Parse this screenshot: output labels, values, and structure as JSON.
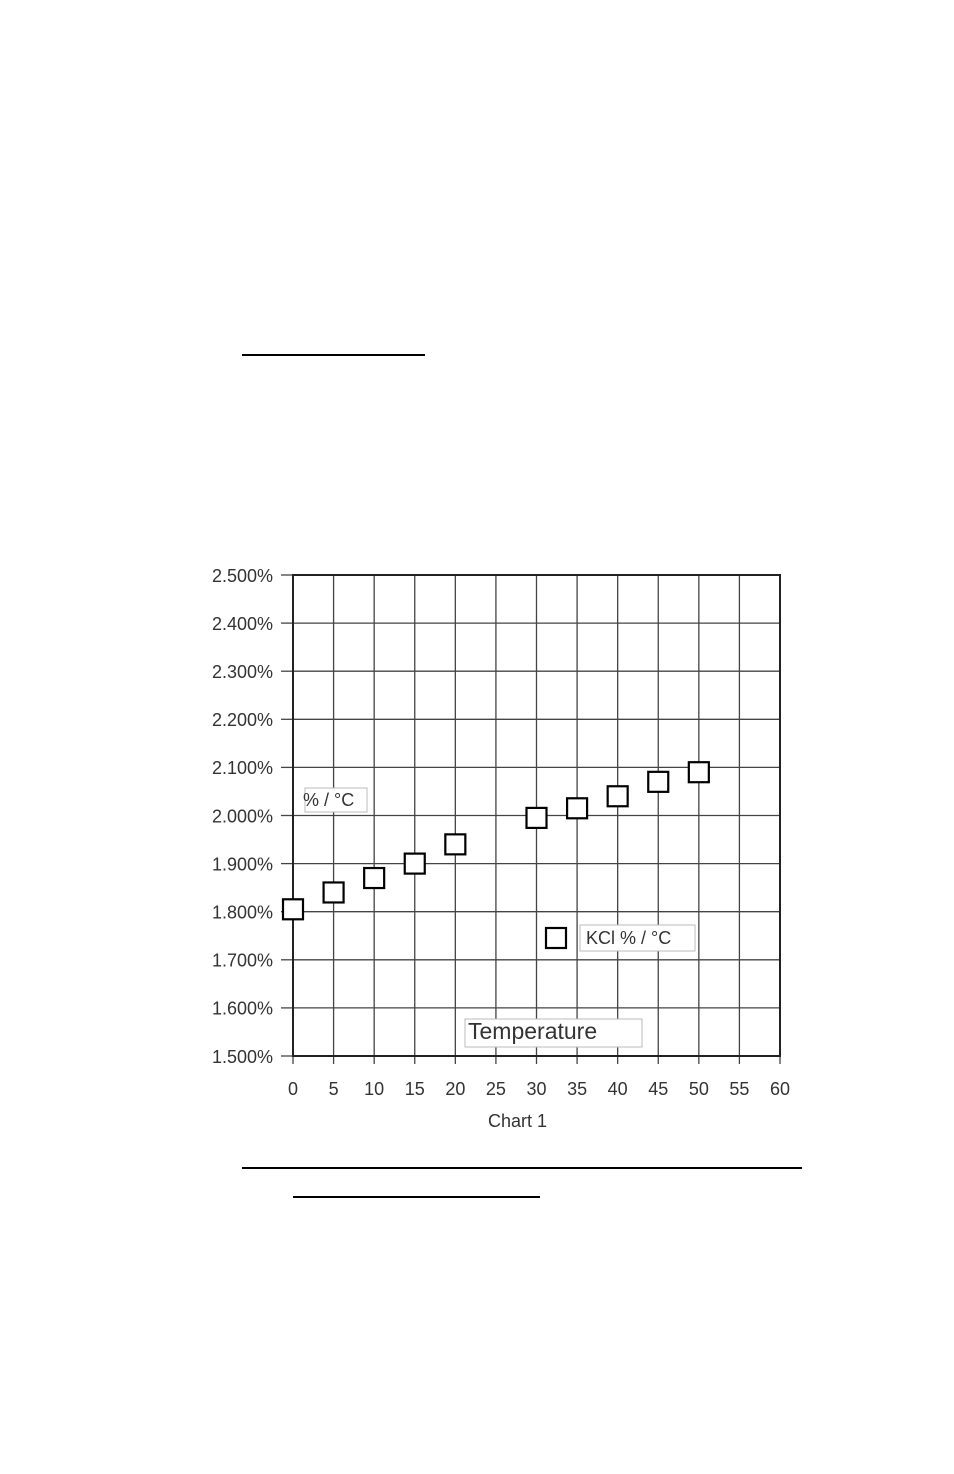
{
  "chart_data": {
    "type": "scatter",
    "caption": "Chart 1",
    "xlabel": "Temperature",
    "ylabel": "% / °C",
    "x": [
      0,
      5,
      10,
      15,
      20,
      30,
      35,
      40,
      45,
      50
    ],
    "series": [
      {
        "name": "KCl % / °C",
        "color": "#000000",
        "values": [
          1.805,
          1.84,
          1.87,
          1.9,
          1.94,
          1.995,
          2.015,
          2.04,
          2.07,
          2.09
        ]
      }
    ],
    "xlim": [
      0,
      60
    ],
    "xticks": [
      0,
      5,
      10,
      15,
      20,
      25,
      30,
      35,
      40,
      45,
      50,
      55,
      60
    ],
    "ylim": [
      1.5,
      2.5
    ],
    "yticks": [
      {
        "value": 1.5,
        "label": "1.500%"
      },
      {
        "value": 1.6,
        "label": "1.600%"
      },
      {
        "value": 1.7,
        "label": "1.700%"
      },
      {
        "value": 1.8,
        "label": "1.800%"
      },
      {
        "value": 1.9,
        "label": "1.900%"
      },
      {
        "value": 2.0,
        "label": "2.000%"
      },
      {
        "value": 2.1,
        "label": "2.100%"
      },
      {
        "value": 2.2,
        "label": "2.200%"
      },
      {
        "value": 2.3,
        "label": "2.300%"
      },
      {
        "value": 2.4,
        "label": "2.400%"
      },
      {
        "value": 2.5,
        "label": "2.500%"
      }
    ],
    "grid": true,
    "legend_position": "lower right"
  }
}
